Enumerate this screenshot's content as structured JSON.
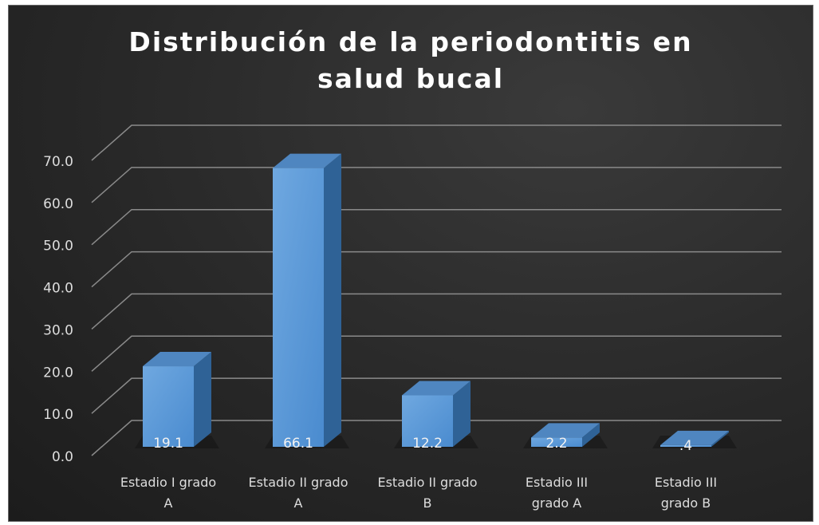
{
  "chart_data": {
    "type": "bar3d",
    "title": "Distribución de la periodontitis en salud bucal",
    "categories": [
      "Estadio I grado A",
      "Estadio II grado A",
      "Estadio II grado B",
      "Estadio III grado A",
      "Estadio III grado B"
    ],
    "values": [
      19.1,
      66.1,
      12.2,
      2.2,
      0.4
    ],
    "value_labels": [
      "19.1",
      "66.1",
      "12.2",
      "2.2",
      ".4"
    ],
    "color": "#5b9bd5",
    "ylim": [
      0,
      70
    ],
    "yticks": [
      {
        "value": 0,
        "label": "0.0"
      },
      {
        "value": 10,
        "label": "10.0"
      },
      {
        "value": 20,
        "label": "20.0"
      },
      {
        "value": 30,
        "label": "30.0"
      },
      {
        "value": 40,
        "label": "40.0"
      },
      {
        "value": 50,
        "label": "50.0"
      },
      {
        "value": 60,
        "label": "60.0"
      },
      {
        "value": 70,
        "label": "70.0"
      }
    ],
    "grid": true
  }
}
